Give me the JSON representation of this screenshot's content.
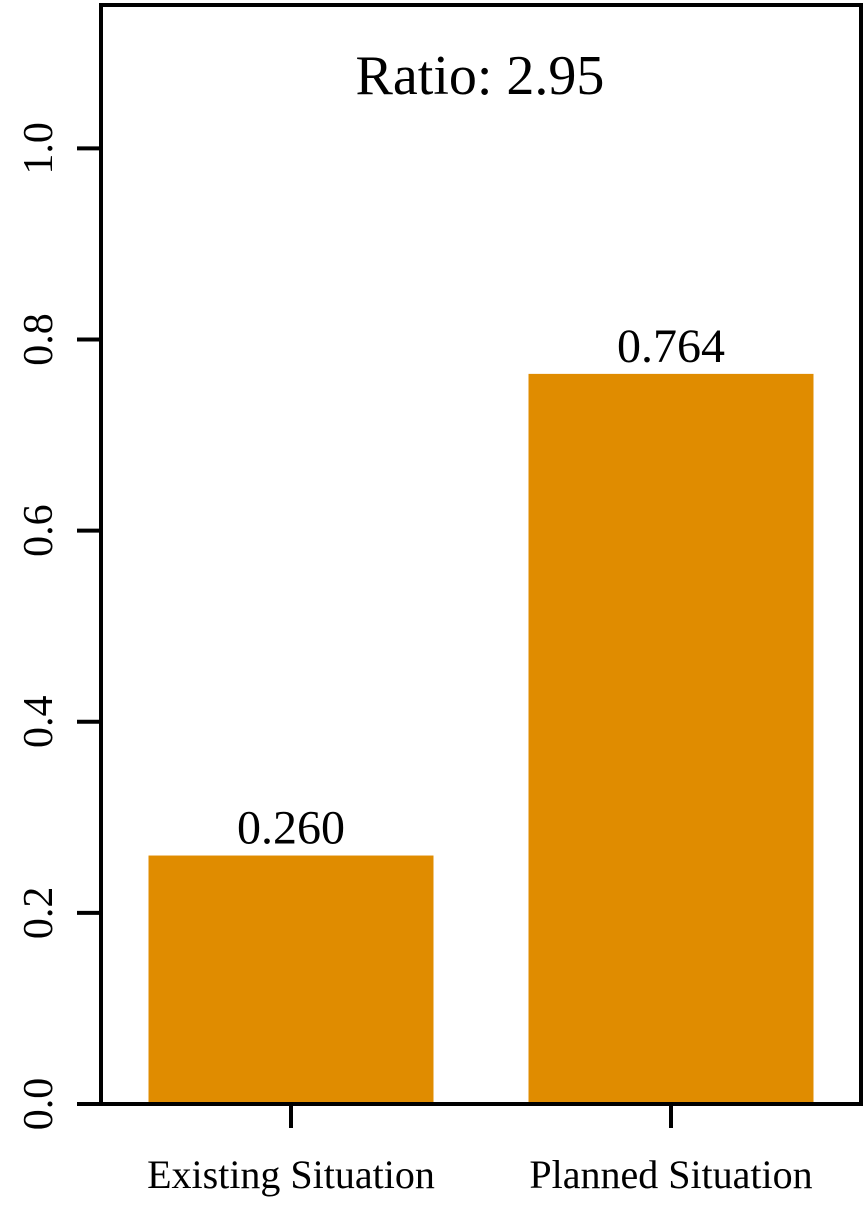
{
  "chart_data": {
    "type": "bar",
    "categories": [
      "Existing Situation",
      "Planned Situation"
    ],
    "values": [
      0.26,
      0.764
    ],
    "data_labels": [
      "0.260",
      "0.764"
    ],
    "annotation": "Ratio: 2.95",
    "title": "",
    "xlabel": "",
    "ylabel": "",
    "ylim": [
      0,
      1.15
    ],
    "yticks": [
      0.0,
      0.2,
      0.4,
      0.6,
      0.8,
      1.0
    ],
    "ytick_labels": [
      "0.0",
      "0.2",
      "0.4",
      "0.6",
      "0.8",
      "1.0"
    ],
    "bar_color": "#E08C00",
    "grid": false,
    "legend": "none"
  }
}
